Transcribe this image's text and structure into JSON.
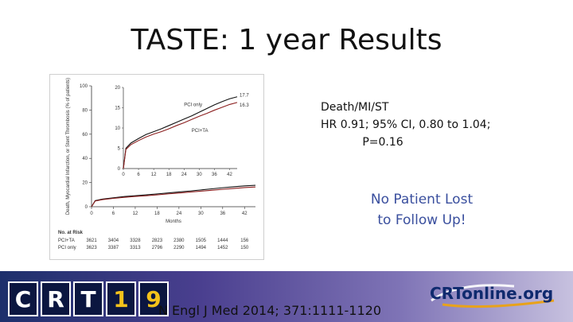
{
  "slide": {
    "title": "TASTE: 1 year Results",
    "stats_line1": "Death/MI/ST",
    "stats_line2": "HR 0.91; 95% CI, 0.80 to 1.04;",
    "stats_line3": "P=0.16",
    "note_line1": "No Patient Lost",
    "note_line2": "to Follow Up!",
    "citation": "N Engl J Med 2014; 371:1111-1120",
    "logo_left": [
      "C",
      "R",
      "T",
      "1",
      "9"
    ],
    "logo_right": "CRTonline.org"
  },
  "chart_data": {
    "type": "line",
    "ylabel": "Death, Myocardial Infarction, or Stent Thrombosis (% of patients)",
    "xlabel": "Months",
    "x": [
      0,
      6,
      12,
      18,
      24,
      30,
      36,
      42
    ],
    "xlim": [
      0,
      45
    ],
    "ylim": [
      0,
      100
    ],
    "yticks": [
      0,
      20,
      40,
      60,
      80,
      100
    ],
    "series": [
      {
        "name": "PCI only",
        "color": "#111111",
        "end_label": "17.7",
        "x": [
          0,
          1,
          3,
          6,
          9,
          12,
          15,
          18,
          21,
          24,
          27,
          30,
          33,
          36,
          39,
          42,
          45
        ],
        "values": [
          0,
          5,
          6.3,
          7.4,
          8.4,
          9.1,
          9.8,
          10.6,
          11.4,
          12.2,
          13,
          13.9,
          14.8,
          15.7,
          16.5,
          17.2,
          17.7
        ]
      },
      {
        "name": "PCI+TA",
        "color": "#8b1e1e",
        "end_label": "16.3",
        "x": [
          0,
          1,
          3,
          6,
          9,
          12,
          15,
          18,
          21,
          24,
          27,
          30,
          33,
          36,
          39,
          42,
          45
        ],
        "values": [
          0,
          4.7,
          5.9,
          6.9,
          7.8,
          8.5,
          9.1,
          9.8,
          10.6,
          11.3,
          12.1,
          12.9,
          13.6,
          14.4,
          15.1,
          15.8,
          16.3
        ]
      }
    ],
    "inset": {
      "xlim": [
        0,
        45
      ],
      "ylim": [
        0,
        20
      ],
      "xticks": [
        0,
        6,
        12,
        18,
        24,
        30,
        36,
        42
      ],
      "yticks": [
        0,
        5,
        10,
        15,
        20
      ]
    },
    "risk_table": {
      "title": "No. at Risk",
      "rows": [
        {
          "label": "PCI+TA",
          "values": [
            "3621",
            "3404",
            "3328",
            "2823",
            "2380",
            "1505",
            "1444",
            "156"
          ]
        },
        {
          "label": "PCI only",
          "values": [
            "3623",
            "3387",
            "3313",
            "2796",
            "2290",
            "1494",
            "1452",
            "150"
          ]
        }
      ]
    }
  }
}
